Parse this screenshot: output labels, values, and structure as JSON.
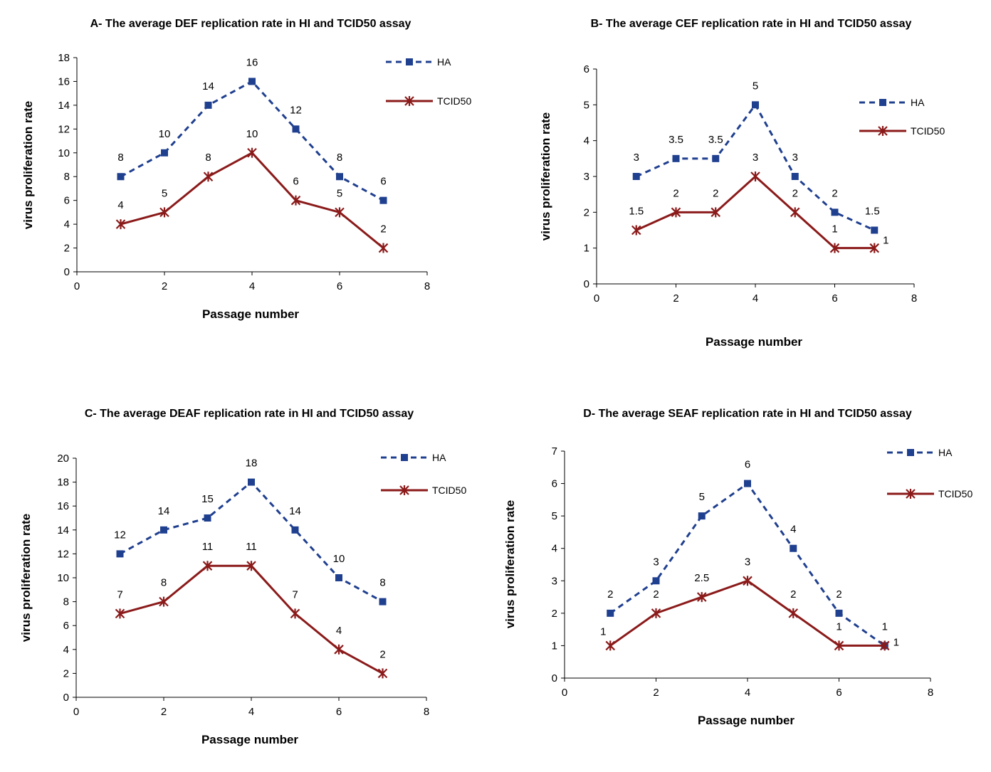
{
  "chart_data": [
    {
      "type": "line",
      "title": "A- The average DEF replication rate in HI and TCID50 assay",
      "xlabel": "Passage number",
      "ylabel": "virus proliferation rate",
      "xlim": [
        0,
        8
      ],
      "ylim": [
        0,
        18
      ],
      "xticks": [
        0,
        2,
        4,
        6,
        8
      ],
      "yticks": [
        0,
        2,
        4,
        6,
        8,
        10,
        12,
        14,
        16,
        18
      ],
      "grid": false,
      "legend": "right",
      "x": [
        1,
        2,
        3,
        4,
        5,
        6,
        7
      ],
      "series": [
        {
          "name": "HA",
          "values": [
            8,
            10,
            14,
            16,
            12,
            8,
            6
          ],
          "color": "#1f3f8f",
          "style": "dashed",
          "marker": "square"
        },
        {
          "name": "TCID50",
          "values": [
            4,
            5,
            8,
            10,
            6,
            5,
            2
          ],
          "color": "#8b1a1a",
          "style": "solid",
          "marker": "star"
        }
      ]
    },
    {
      "type": "line",
      "title": "B- The average CEF replication rate in HI and TCID50 assay",
      "xlabel": "Passage number",
      "ylabel": "virus proliferation rate",
      "xlim": [
        0,
        8
      ],
      "ylim": [
        0,
        6
      ],
      "xticks": [
        0,
        2,
        4,
        6,
        8
      ],
      "yticks": [
        0,
        1,
        2,
        3,
        4,
        5,
        6
      ],
      "grid": false,
      "legend": "right",
      "x": [
        1,
        2,
        3,
        4,
        5,
        6,
        7
      ],
      "series": [
        {
          "name": "HA",
          "values": [
            3,
            3.5,
            3.5,
            5,
            3,
            2,
            1.5
          ],
          "color": "#1f3f8f",
          "style": "dashed",
          "marker": "square"
        },
        {
          "name": "TCID50",
          "values": [
            1.5,
            2,
            2,
            3,
            2,
            1,
            1
          ],
          "color": "#8b1a1a",
          "style": "solid",
          "marker": "star"
        }
      ]
    },
    {
      "type": "line",
      "title": "C- The average DEAF replication rate in HI and TCID50 assay",
      "xlabel": "Passage number",
      "ylabel": "virus proliferation rate",
      "xlim": [
        0,
        8
      ],
      "ylim": [
        0,
        20
      ],
      "xticks": [
        0,
        2,
        4,
        6,
        8
      ],
      "yticks": [
        0,
        2,
        4,
        6,
        8,
        10,
        12,
        14,
        16,
        18,
        20
      ],
      "grid": false,
      "legend": "right",
      "x": [
        1,
        2,
        3,
        4,
        5,
        6,
        7
      ],
      "series": [
        {
          "name": "HA",
          "values": [
            12,
            14,
            15,
            18,
            14,
            10,
            8
          ],
          "color": "#1f3f8f",
          "style": "dashed",
          "marker": "square"
        },
        {
          "name": "TCID50",
          "values": [
            7,
            8,
            11,
            11,
            7,
            4,
            2
          ],
          "color": "#8b1a1a",
          "style": "solid",
          "marker": "star"
        }
      ]
    },
    {
      "type": "line",
      "title": "D-  The average SEAF replication rate in HI and TCID50 assay",
      "xlabel": "Passage number",
      "ylabel": "virus proliferation rate",
      "xlim": [
        0,
        8
      ],
      "ylim": [
        0,
        7
      ],
      "xticks": [
        0,
        2,
        4,
        6,
        8
      ],
      "yticks": [
        0,
        1,
        2,
        3,
        4,
        5,
        6,
        7
      ],
      "grid": false,
      "legend": "right",
      "x": [
        1,
        2,
        3,
        4,
        5,
        6,
        7
      ],
      "series": [
        {
          "name": "HA",
          "values": [
            2,
            3,
            5,
            6,
            4,
            2,
            1
          ],
          "color": "#1f3f8f",
          "style": "dashed",
          "marker": "square"
        },
        {
          "name": "TCID50",
          "values": [
            1,
            2,
            2.5,
            3,
            2,
            1,
            1
          ],
          "color": "#8b1a1a",
          "style": "solid",
          "marker": "star"
        }
      ]
    }
  ]
}
